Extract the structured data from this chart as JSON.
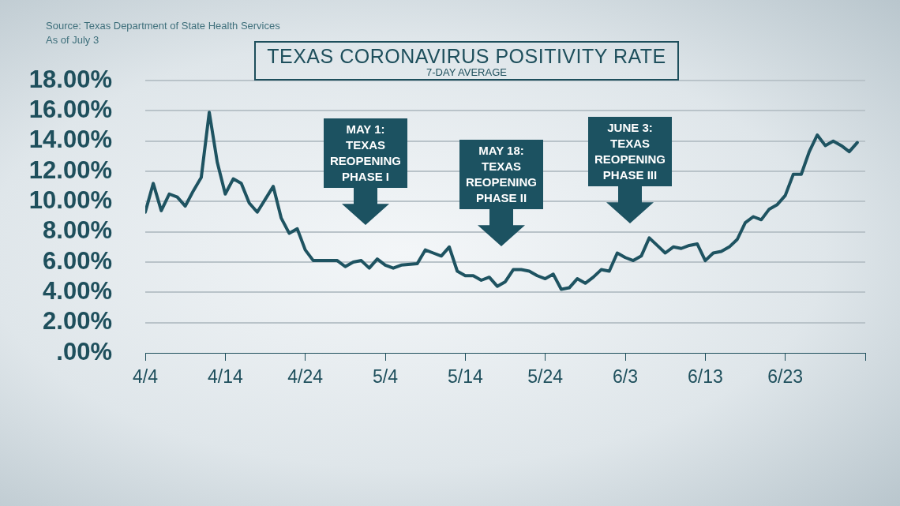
{
  "chart_data": {
    "type": "line",
    "title": "TEXAS CORONAVIRUS POSITIVITY RATE",
    "subtitle": "7-DAY AVERAGE",
    "annotations": [
      "Source: Texas Department of State Health Services",
      "As of July 3",
      "MAY 1:\nTEXAS\nREOPENING\nPHASE I",
      "MAY 18:\nTEXAS\nREOPENING\nPHASE II",
      "JUNE 3:\nTEXAS\nREOPENING\nPHASE III"
    ],
    "x": [
      "--04-04",
      "--04-05",
      "--04-06",
      "--04-07",
      "--04-08",
      "--04-09",
      "--04-10",
      "--04-11",
      "--04-12",
      "--04-13",
      "--04-14",
      "--04-15",
      "--04-16",
      "--04-17",
      "--04-18",
      "--04-20",
      "--04-21",
      "--04-22",
      "--04-23",
      "--04-24",
      "--04-25",
      "--04-27",
      "--04-28",
      "--04-29",
      "--04-30",
      "--05-01",
      "--05-02",
      "--05-03",
      "--05-04",
      "--05-05",
      "--05-06",
      "--05-08",
      "--05-09",
      "--05-10",
      "--05-11",
      "--05-12",
      "--05-13",
      "--05-14",
      "--05-15",
      "--05-16",
      "--05-17",
      "--05-18",
      "--05-19",
      "--05-20",
      "--05-21",
      "--05-22",
      "--05-23",
      "--05-24",
      "--05-25",
      "--05-26",
      "--05-27",
      "--05-28",
      "--05-29",
      "--05-30",
      "--05-31",
      "--06-01",
      "--06-02",
      "--06-03",
      "--06-04",
      "--06-05",
      "--06-06",
      "--06-07",
      "--06-08",
      "--06-09",
      "--06-10",
      "--06-11",
      "--06-12",
      "--06-13",
      "--06-14",
      "--06-15",
      "--06-16",
      "--06-17",
      "--06-18",
      "--06-19",
      "--06-20",
      "--06-21",
      "--06-22",
      "--06-23",
      "--06-24",
      "--06-25",
      "--06-26",
      "--06-27",
      "--06-28",
      "--06-29",
      "--06-30",
      "--07-01",
      "--07-02"
    ],
    "values": [
      9.3,
      11.2,
      9.4,
      10.5,
      10.3,
      9.7,
      10.7,
      11.6,
      15.9,
      12.6,
      10.5,
      11.5,
      11.2,
      9.9,
      9.3,
      11.0,
      8.9,
      7.9,
      8.2,
      6.8,
      6.1,
      6.1,
      6.1,
      5.7,
      6.0,
      6.1,
      5.6,
      6.2,
      5.8,
      5.6,
      5.8,
      5.9,
      6.8,
      6.6,
      6.4,
      7.0,
      5.4,
      5.1,
      5.1,
      4.8,
      5.0,
      4.4,
      4.7,
      5.5,
      5.5,
      5.4,
      5.1,
      4.9,
      5.2,
      4.2,
      4.3,
      4.9,
      4.6,
      5.0,
      5.5,
      5.4,
      6.6,
      6.3,
      6.1,
      6.4,
      7.6,
      7.1,
      6.6,
      7.0,
      6.9,
      7.1,
      7.2,
      6.1,
      6.6,
      6.7,
      7.0,
      7.5,
      8.6,
      9.0,
      8.8,
      9.5,
      9.8,
      10.4,
      11.8,
      11.8,
      13.3,
      14.4,
      13.7,
      14.0,
      13.7,
      13.3,
      13.9
    ],
    "color": "#1e5361",
    "marker": "none",
    "line_style": "solid",
    "xlim": [
      "--04-04",
      "--07-03"
    ],
    "xticks": [
      {
        "value": "--04-04",
        "label": "4/4"
      },
      {
        "value": "--04-14",
        "label": "4/14"
      },
      {
        "value": "--04-24",
        "label": "4/24"
      },
      {
        "value": "--05-04",
        "label": "5/4"
      },
      {
        "value": "--05-14",
        "label": "5/14"
      },
      {
        "value": "--05-24",
        "label": "5/24"
      },
      {
        "value": "--06-03",
        "label": "6/3"
      },
      {
        "value": "--06-13",
        "label": "6/13"
      },
      {
        "value": "--06-23",
        "label": "6/23"
      },
      {
        "value": "--07-03",
        "label": null
      }
    ],
    "ylim": [
      0,
      18
    ],
    "yticks": [
      {
        "value": 0,
        "label": ".00%"
      },
      {
        "value": 2,
        "label": "2.00%"
      },
      {
        "value": 4,
        "label": "4.00%"
      },
      {
        "value": 6,
        "label": "6.00%"
      },
      {
        "value": 8,
        "label": "8.00%"
      },
      {
        "value": 10,
        "label": "10.00%"
      },
      {
        "value": 12,
        "label": "12.00%"
      },
      {
        "value": 14,
        "label": "14.00%"
      },
      {
        "value": 16,
        "label": "16.00%"
      },
      {
        "value": 18,
        "label": "18.00%"
      }
    ],
    "grid": "y"
  }
}
